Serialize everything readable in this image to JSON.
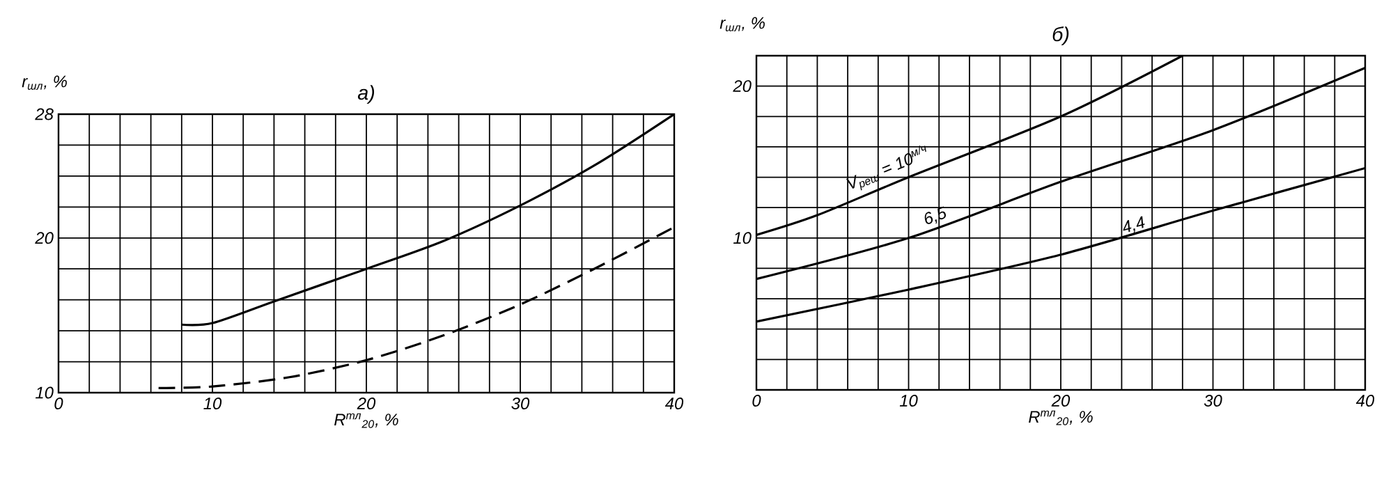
{
  "chart_data": [
    {
      "type": "line",
      "title": "а)",
      "xlabel": "R$^{тл}$$_{20}$, %",
      "ylabel": "r$_{шл}$, %",
      "xlim": [
        0,
        40
      ],
      "ylim": [
        10,
        28
      ],
      "xticks": [
        0,
        {
          "value": 2,
          "label": null
        },
        {
          "value": 4,
          "label": null
        },
        {
          "value": 6,
          "label": null
        },
        {
          "value": 8,
          "label": null
        },
        10,
        {
          "value": 12,
          "label": null
        },
        {
          "value": 14,
          "label": null
        },
        {
          "value": 16,
          "label": null
        },
        {
          "value": 18,
          "label": null
        },
        20,
        {
          "value": 22,
          "label": null
        },
        {
          "value": 24,
          "label": null
        },
        {
          "value": 26,
          "label": null
        },
        {
          "value": 28,
          "label": null
        },
        30,
        {
          "value": 32,
          "label": null
        },
        {
          "value": 34,
          "label": null
        },
        {
          "value": 36,
          "label": null
        },
        {
          "value": 38,
          "label": null
        },
        40
      ],
      "yticks": [
        10,
        {
          "value": 12,
          "label": null
        },
        {
          "value": 14,
          "label": null
        },
        {
          "value": 16,
          "label": null
        },
        {
          "value": 18,
          "label": null
        },
        20,
        {
          "value": 22,
          "label": null
        },
        {
          "value": 24,
          "label": null
        },
        {
          "value": 26,
          "label": null
        },
        28
      ],
      "grid": true,
      "marker": "none",
      "series": [
        {
          "color": "#000000",
          "line_style": "solid",
          "x": [
            8,
            10,
            14,
            20,
            25,
            30,
            35,
            40
          ],
          "values": [
            14.4,
            14.5,
            15.9,
            18.0,
            19.8,
            22.1,
            24.8,
            28.0
          ]
        },
        {
          "color": "#000000",
          "line_style": "dashed",
          "x": [
            6.5,
            10,
            15,
            20,
            25,
            30,
            35,
            40
          ],
          "values": [
            10.3,
            10.4,
            11.0,
            12.1,
            13.7,
            15.7,
            18.1,
            20.7
          ]
        }
      ]
    },
    {
      "type": "line",
      "title": "б)",
      "xlabel": "R$^{тл}$$_{20}$, %",
      "ylabel": "r$_{шл}$, %",
      "xlim": [
        0,
        40
      ],
      "ylim": [
        0,
        22
      ],
      "xticks": [
        0,
        {
          "value": 2,
          "label": null
        },
        {
          "value": 4,
          "label": null
        },
        {
          "value": 6,
          "label": null
        },
        {
          "value": 8,
          "label": null
        },
        10,
        {
          "value": 12,
          "label": null
        },
        {
          "value": 14,
          "label": null
        },
        {
          "value": 16,
          "label": null
        },
        {
          "value": 18,
          "label": null
        },
        20,
        {
          "value": 22,
          "label": null
        },
        {
          "value": 24,
          "label": null
        },
        {
          "value": 26,
          "label": null
        },
        {
          "value": 28,
          "label": null
        },
        30,
        {
          "value": 32,
          "label": null
        },
        {
          "value": 34,
          "label": null
        },
        {
          "value": 36,
          "label": null
        },
        {
          "value": 38,
          "label": null
        },
        40
      ],
      "yticks": [
        {
          "value": 0,
          "label": null
        },
        {
          "value": 2,
          "label": null
        },
        {
          "value": 4,
          "label": null
        },
        {
          "value": 6,
          "label": null
        },
        {
          "value": 8,
          "label": null
        },
        10,
        {
          "value": 12,
          "label": null
        },
        {
          "value": 14,
          "label": null
        },
        {
          "value": 16,
          "label": null
        },
        {
          "value": 18,
          "label": null
        },
        20,
        {
          "value": 22,
          "label": null
        }
      ],
      "grid": true,
      "marker": "none",
      "series": [
        {
          "color": "#000000",
          "line_style": "solid",
          "x": [
            0,
            4,
            10,
            20,
            28
          ],
          "values": [
            10.2,
            11.5,
            14.0,
            18.0,
            22.0
          ]
        },
        {
          "color": "#000000",
          "line_style": "solid",
          "x": [
            0,
            10,
            20,
            30,
            40
          ],
          "values": [
            7.3,
            10.0,
            13.7,
            17.1,
            21.2
          ]
        },
        {
          "color": "#000000",
          "line_style": "solid",
          "x": [
            0,
            10,
            20,
            30,
            40
          ],
          "values": [
            4.5,
            6.6,
            8.9,
            11.8,
            14.6
          ]
        }
      ],
      "annotations": [
        {
          "text": "V$_{реш}$ = 10$^{м/ч}$",
          "x": 9,
          "y": 13.7
        },
        {
          "text": "6,5",
          "x": 12,
          "y": 10.7
        },
        {
          "text": "4,4",
          "x": 25,
          "y": 10.1
        }
      ]
    }
  ]
}
